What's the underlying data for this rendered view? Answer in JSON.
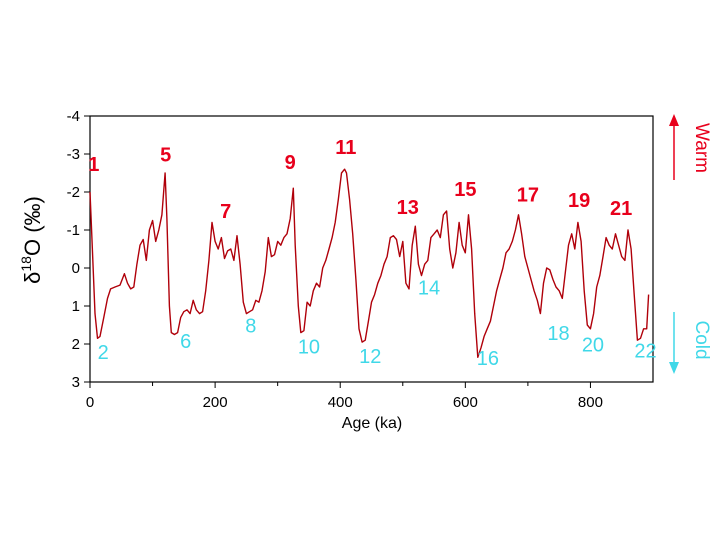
{
  "chart_data": {
    "type": "line",
    "xlabel": "Age (ka)",
    "ylabel_main": "δ",
    "ylabel_sup": "18",
    "ylabel_rest": "O (‰)",
    "xlim": [
      0,
      900
    ],
    "ylim": [
      -4,
      3
    ],
    "y_inverted": true,
    "grid": false,
    "x_ticks": [
      {
        "value": 0,
        "label": "0"
      },
      {
        "value": 200,
        "label": "200"
      },
      {
        "value": 400,
        "label": "400"
      },
      {
        "value": 600,
        "label": "600"
      },
      {
        "value": 800,
        "label": "800"
      }
    ],
    "y_ticks": [
      {
        "value": -4,
        "label": "-4"
      },
      {
        "value": -3,
        "label": "-3"
      },
      {
        "value": -2,
        "label": "-2"
      },
      {
        "value": -1,
        "label": "-1"
      },
      {
        "value": 0,
        "label": "0"
      },
      {
        "value": 1,
        "label": "1"
      },
      {
        "value": 2,
        "label": "2"
      },
      {
        "value": 3,
        "label": "3"
      }
    ],
    "series": [
      {
        "color": "#b0000a",
        "x": [
          0,
          3,
          8,
          12,
          16,
          22,
          28,
          33,
          40,
          48,
          55,
          60,
          65,
          70,
          75,
          80,
          85,
          90,
          95,
          100,
          105,
          110,
          115,
          120,
          123,
          127,
          130,
          135,
          140,
          145,
          150,
          155,
          160,
          165,
          170,
          175,
          180,
          185,
          190,
          195,
          200,
          205,
          210,
          215,
          220,
          225,
          230,
          235,
          240,
          245,
          250,
          255,
          260,
          265,
          270,
          275,
          280,
          285,
          290,
          295,
          300,
          305,
          310,
          315,
          320,
          325,
          328,
          333,
          337,
          342,
          347,
          352,
          357,
          362,
          367,
          372,
          377,
          382,
          387,
          392,
          397,
          402,
          407,
          410,
          415,
          420,
          425,
          430,
          435,
          440,
          445,
          450,
          455,
          460,
          465,
          470,
          475,
          480,
          485,
          490,
          495,
          500,
          505,
          510,
          515,
          520,
          525,
          530,
          535,
          540,
          545,
          550,
          555,
          560,
          565,
          570,
          575,
          580,
          585,
          590,
          595,
          600,
          605,
          610,
          615,
          620,
          625,
          630,
          635,
          640,
          645,
          650,
          655,
          660,
          665,
          670,
          675,
          680,
          685,
          690,
          695,
          700,
          705,
          710,
          715,
          720,
          725,
          730,
          735,
          740,
          745,
          750,
          755,
          760,
          765,
          770,
          775,
          780,
          785,
          790,
          795,
          800,
          805,
          810,
          815,
          820,
          825,
          830,
          835,
          840,
          845,
          850,
          855,
          860,
          865,
          870,
          875,
          880,
          885,
          890,
          893
        ],
        "values": [
          -2.0,
          -0.8,
          1.2,
          1.85,
          1.8,
          1.3,
          0.8,
          0.55,
          0.5,
          0.45,
          0.15,
          0.4,
          0.55,
          0.5,
          -0.1,
          -0.6,
          -0.75,
          -0.2,
          -1.0,
          -1.25,
          -0.7,
          -1.0,
          -1.4,
          -2.5,
          -1.3,
          1.0,
          1.7,
          1.75,
          1.7,
          1.3,
          1.15,
          1.1,
          1.2,
          0.85,
          1.1,
          1.2,
          1.15,
          0.6,
          -0.2,
          -1.2,
          -0.7,
          -0.5,
          -0.8,
          -0.25,
          -0.45,
          -0.5,
          -0.2,
          -0.85,
          -0.1,
          0.9,
          1.2,
          1.15,
          1.1,
          0.85,
          0.9,
          0.6,
          0.1,
          -0.8,
          -0.3,
          -0.35,
          -0.7,
          -0.6,
          -0.8,
          -0.9,
          -1.3,
          -2.1,
          -0.6,
          1.0,
          1.7,
          1.65,
          0.9,
          1.0,
          0.6,
          0.4,
          0.5,
          0.0,
          -0.2,
          -0.5,
          -0.8,
          -1.2,
          -1.8,
          -2.5,
          -2.6,
          -2.5,
          -1.8,
          -0.9,
          0.3,
          1.6,
          1.95,
          1.9,
          1.4,
          0.9,
          0.7,
          0.4,
          0.2,
          -0.1,
          -0.3,
          -0.8,
          -0.85,
          -0.75,
          -0.3,
          -0.7,
          0.4,
          0.55,
          -0.6,
          -1.1,
          -0.1,
          0.2,
          -0.1,
          -0.2,
          -0.8,
          -0.9,
          -1.0,
          -0.8,
          -1.4,
          -1.5,
          -0.5,
          0.0,
          -0.4,
          -1.2,
          -0.6,
          -0.4,
          -1.4,
          -0.5,
          1.2,
          2.35,
          2.1,
          1.8,
          1.6,
          1.4,
          1.0,
          0.6,
          0.3,
          0.0,
          -0.4,
          -0.5,
          -0.7,
          -1.0,
          -1.4,
          -0.9,
          -0.3,
          0.0,
          0.3,
          0.6,
          0.85,
          1.2,
          0.4,
          0.0,
          0.05,
          0.3,
          0.5,
          0.6,
          0.8,
          0.1,
          -0.6,
          -0.9,
          -0.5,
          -1.2,
          -0.7,
          0.6,
          1.5,
          1.6,
          1.2,
          0.5,
          0.2,
          -0.3,
          -0.8,
          -0.6,
          -0.5,
          -0.9,
          -0.6,
          -0.3,
          -0.2,
          -1.0,
          -0.5,
          0.7,
          1.9,
          1.85,
          1.6,
          1.6,
          0.7
        ]
      }
    ],
    "annotations": [
      {
        "text": "1",
        "x": 6,
        "y": -2.55,
        "kind": "warm",
        "color": "#e8001c"
      },
      {
        "text": "5",
        "x": 121,
        "y": -2.8,
        "kind": "warm",
        "color": "#e8001c"
      },
      {
        "text": "7",
        "x": 217,
        "y": -1.32,
        "kind": "warm",
        "color": "#e8001c"
      },
      {
        "text": "9",
        "x": 320,
        "y": -2.6,
        "kind": "warm",
        "color": "#e8001c"
      },
      {
        "text": "11",
        "x": 409,
        "y": -3.0,
        "kind": "warm",
        "color": "#e8001c"
      },
      {
        "text": "13",
        "x": 508,
        "y": -1.42,
        "kind": "warm",
        "color": "#e8001c"
      },
      {
        "text": "15",
        "x": 600,
        "y": -1.9,
        "kind": "warm",
        "color": "#e8001c"
      },
      {
        "text": "17",
        "x": 700,
        "y": -1.75,
        "kind": "warm",
        "color": "#e8001c"
      },
      {
        "text": "19",
        "x": 782,
        "y": -1.6,
        "kind": "warm",
        "color": "#e8001c"
      },
      {
        "text": "21",
        "x": 849,
        "y": -1.4,
        "kind": "warm",
        "color": "#e8001c"
      },
      {
        "text": "2",
        "x": 21,
        "y": 2.4,
        "kind": "cold",
        "color": "#40d8e8"
      },
      {
        "text": "6",
        "x": 153,
        "y": 2.1,
        "kind": "cold",
        "color": "#40d8e8"
      },
      {
        "text": "8",
        "x": 257,
        "y": 1.7,
        "kind": "cold",
        "color": "#40d8e8"
      },
      {
        "text": "10",
        "x": 350,
        "y": 2.25,
        "kind": "cold",
        "color": "#40d8e8"
      },
      {
        "text": "12",
        "x": 448,
        "y": 2.5,
        "kind": "cold",
        "color": "#40d8e8"
      },
      {
        "text": "14",
        "x": 542,
        "y": 0.7,
        "kind": "cold",
        "color": "#40d8e8"
      },
      {
        "text": "16",
        "x": 636,
        "y": 2.55,
        "kind": "cold",
        "color": "#40d8e8"
      },
      {
        "text": "18",
        "x": 749,
        "y": 1.9,
        "kind": "cold",
        "color": "#40d8e8"
      },
      {
        "text": "20",
        "x": 804,
        "y": 2.2,
        "kind": "cold",
        "color": "#40d8e8"
      },
      {
        "text": "22",
        "x": 888,
        "y": 2.35,
        "kind": "cold",
        "color": "#40d8e8"
      }
    ],
    "side_labels": {
      "warm": {
        "text": "Warm",
        "color": "#e8001c"
      },
      "cold": {
        "text": "Cold",
        "color": "#40d8e8"
      }
    }
  }
}
